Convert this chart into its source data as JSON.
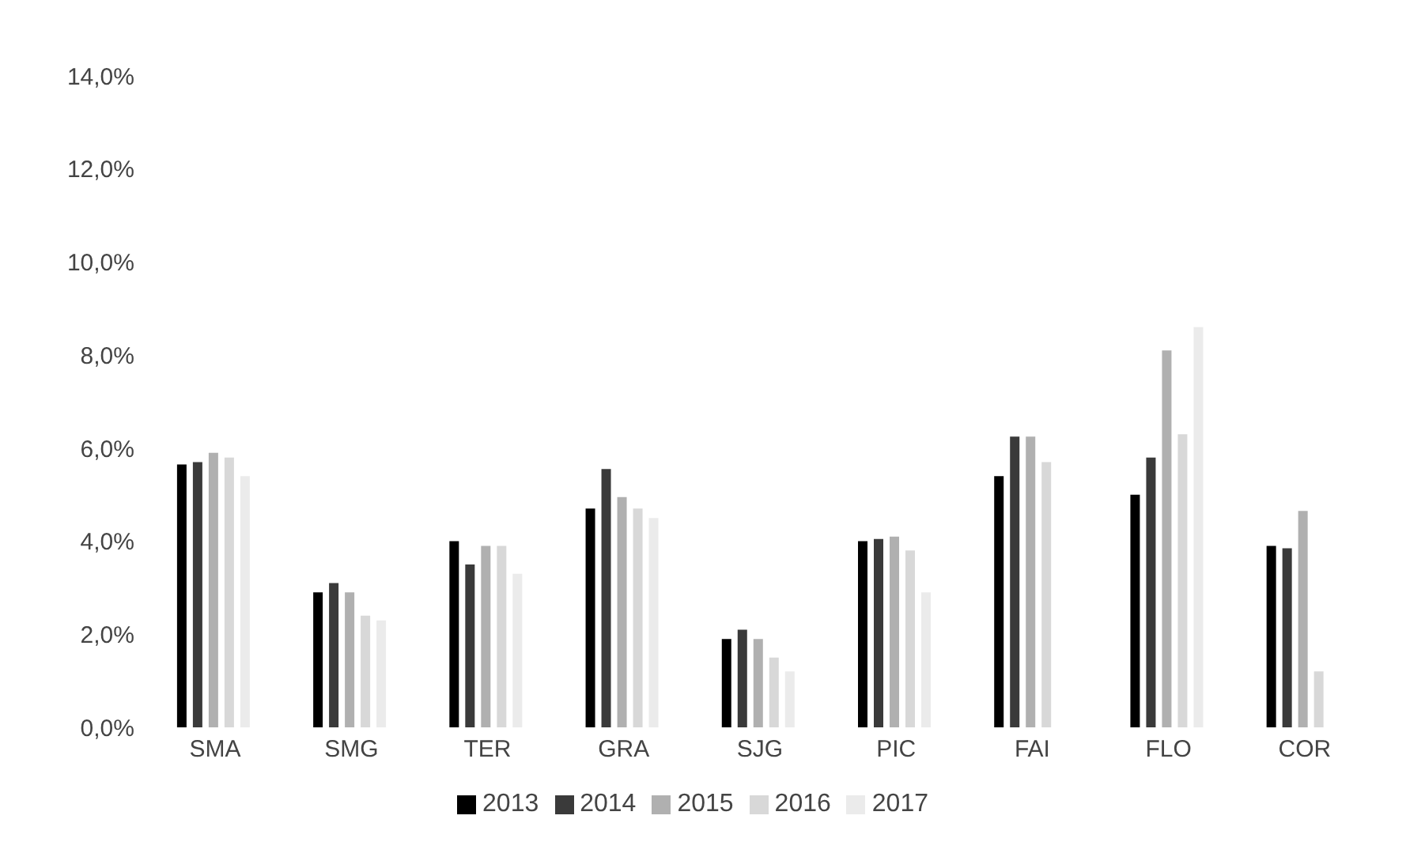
{
  "chart_data": {
    "type": "bar",
    "categories": [
      "SMA",
      "SMG",
      "TER",
      "GRA",
      "SJG",
      "PIC",
      "FAI",
      "FLO",
      "COR"
    ],
    "series": [
      {
        "name": "2013",
        "color": "#000000",
        "values": [
          5.65,
          2.9,
          4.0,
          4.7,
          1.9,
          4.0,
          5.4,
          5.0,
          3.9
        ]
      },
      {
        "name": "2014",
        "color": "#3a3a3a",
        "values": [
          5.7,
          3.1,
          3.5,
          5.55,
          2.1,
          4.05,
          6.25,
          5.8,
          3.85
        ]
      },
      {
        "name": "2015",
        "color": "#b0b0b0",
        "values": [
          5.9,
          2.9,
          3.9,
          4.95,
          1.9,
          4.1,
          6.25,
          8.1,
          4.65
        ]
      },
      {
        "name": "2016",
        "color": "#d8d8d8",
        "values": [
          5.8,
          2.4,
          3.9,
          4.7,
          1.5,
          3.8,
          5.7,
          6.3,
          1.2
        ]
      },
      {
        "name": "2017",
        "color": "#ebebeb",
        "values": [
          5.4,
          2.3,
          3.3,
          4.5,
          1.2,
          2.9,
          null,
          8.6,
          null
        ]
      }
    ],
    "ylim": [
      0,
      14
    ],
    "yticks": [
      {
        "value": 0,
        "label": "0,0%"
      },
      {
        "value": 2,
        "label": "2,0%"
      },
      {
        "value": 4,
        "label": "4,0%"
      },
      {
        "value": 6,
        "label": "6,0%"
      },
      {
        "value": 8,
        "label": "8,0%"
      },
      {
        "value": 10,
        "label": "10,0%"
      },
      {
        "value": 12,
        "label": "12,0%"
      },
      {
        "value": 14,
        "label": "14,0%"
      }
    ],
    "grid": false,
    "legend": "bottom"
  }
}
